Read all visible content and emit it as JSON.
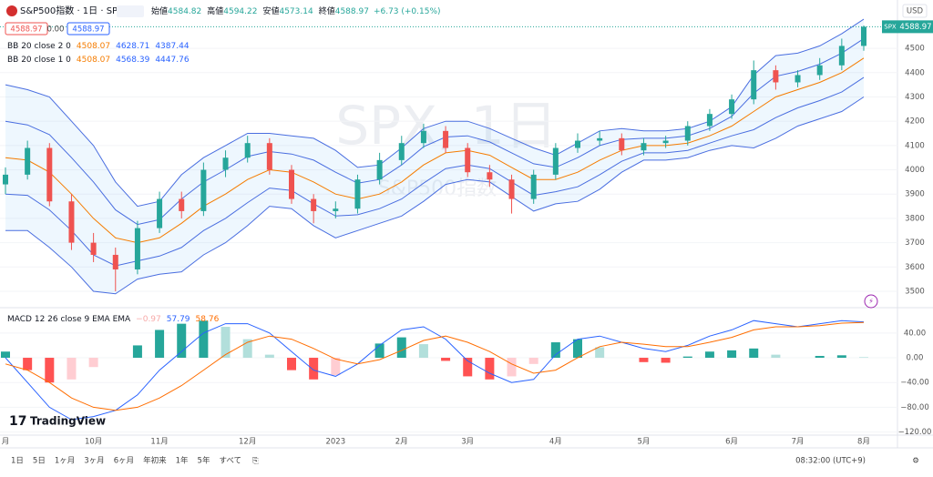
{
  "header": {
    "symbol": "S&P500指数 · 1日 · SP",
    "ohlc": [
      {
        "label": "始値",
        "value": "4584.82"
      },
      {
        "label": "高値",
        "value": "4594.22"
      },
      {
        "label": "安値",
        "value": "4573.14"
      },
      {
        "label": "終値",
        "value": "4588.97"
      }
    ],
    "change": "+6.73 (+0.15%)",
    "boxes": [
      "4588.97",
      "0.00",
      "4588.97"
    ]
  },
  "indicators": {
    "bb2": {
      "label": "BB 20 close 2 0",
      "values": [
        "4508.07",
        "4628.71",
        "4387.44"
      ]
    },
    "bb1": {
      "label": "BB 20 close 1 0",
      "values": [
        "4508.07",
        "4568.39",
        "4447.76"
      ]
    },
    "macd": {
      "label": "MACD 12 26 close 9 EMA EMA",
      "values": [
        "−0.97",
        "57.79",
        "58.76"
      ]
    }
  },
  "watermark": {
    "symbol": "SPX, 1日",
    "name": "S&P500指数"
  },
  "currency": "USD",
  "price_tag": {
    "symbol": "SPX",
    "value": "4588.97"
  },
  "logo": "TradingView",
  "toolbar": {
    "ranges": [
      "1日",
      "5日",
      "1ヶ月",
      "3ヶ月",
      "6ヶ月",
      "年初来",
      "1年",
      "5年",
      "すべて"
    ],
    "time": "08:32:00 (UTC+9)"
  },
  "chart_data": [
    {
      "type": "candlestick",
      "ylim": [
        3440,
        4699
      ],
      "yticks": [
        3500,
        3600,
        3700,
        3800,
        3900,
        4000,
        4100,
        4200,
        4300,
        4400,
        4500
      ],
      "categories": [
        "月",
        null,
        null,
        null,
        "10月",
        null,
        null,
        "11月",
        null,
        null,
        null,
        "12月",
        null,
        null,
        null,
        "2023",
        null,
        null,
        "2月",
        null,
        null,
        "3月",
        null,
        null,
        null,
        "4月",
        null,
        null,
        null,
        "5月",
        null,
        null,
        null,
        "6月",
        null,
        null,
        "7月",
        null,
        null,
        "8月"
      ],
      "up_color": "#26a69a",
      "down_color": "#ef5350",
      "candles": [
        [
          3940,
          4010,
          3900,
          3980
        ],
        [
          3980,
          4120,
          3960,
          4090
        ],
        [
          4090,
          4110,
          3850,
          3870
        ],
        [
          3870,
          3900,
          3670,
          3700
        ],
        [
          3700,
          3740,
          3620,
          3650
        ],
        [
          3650,
          3680,
          3500,
          3590
        ],
        [
          3590,
          3790,
          3570,
          3760
        ],
        [
          3760,
          3910,
          3740,
          3880
        ],
        [
          3880,
          3910,
          3800,
          3830
        ],
        [
          3830,
          4030,
          3810,
          4000
        ],
        [
          4000,
          4080,
          3970,
          4050
        ],
        [
          4050,
          4140,
          4030,
          4110
        ],
        [
          4110,
          4130,
          3980,
          4000
        ],
        [
          4000,
          4020,
          3860,
          3880
        ],
        [
          3880,
          3900,
          3780,
          3830
        ],
        [
          3830,
          3870,
          3800,
          3840
        ],
        [
          3840,
          3980,
          3820,
          3960
        ],
        [
          3960,
          4070,
          3940,
          4040
        ],
        [
          4040,
          4140,
          4020,
          4110
        ],
        [
          4110,
          4190,
          4090,
          4160
        ],
        [
          4160,
          4180,
          4070,
          4090
        ],
        [
          4090,
          4110,
          3970,
          3990
        ],
        [
          3990,
          4020,
          3930,
          3960
        ],
        [
          3960,
          3980,
          3820,
          3880
        ],
        [
          3880,
          4000,
          3860,
          3980
        ],
        [
          3980,
          4110,
          3960,
          4090
        ],
        [
          4090,
          4150,
          4070,
          4120
        ],
        [
          4120,
          4160,
          4100,
          4130
        ],
        [
          4130,
          4150,
          4060,
          4080
        ],
        [
          4080,
          4130,
          4060,
          4110
        ],
        [
          4110,
          4140,
          4090,
          4120
        ],
        [
          4120,
          4200,
          4100,
          4180
        ],
        [
          4180,
          4250,
          4160,
          4230
        ],
        [
          4230,
          4310,
          4210,
          4290
        ],
        [
          4290,
          4450,
          4270,
          4410
        ],
        [
          4410,
          4430,
          4330,
          4360
        ],
        [
          4360,
          4410,
          4340,
          4390
        ],
        [
          4390,
          4460,
          4370,
          4430
        ],
        [
          4430,
          4540,
          4410,
          4510
        ],
        [
          4510,
          4594.22,
          4490,
          4588.97
        ]
      ],
      "band_fill": "#2196f3",
      "band_color": "#4a6ee0",
      "mid_color": "#f57c00",
      "bands": {
        "upper2": [
          4350,
          4330,
          4300,
          4200,
          4100,
          3950,
          3850,
          3870,
          3980,
          4050,
          4100,
          4150,
          4150,
          4140,
          4130,
          4080,
          4010,
          4020,
          4090,
          4170,
          4200,
          4200,
          4170,
          4130,
          4090,
          4060,
          4110,
          4160,
          4170,
          4160,
          4160,
          4170,
          4200,
          4260,
          4390,
          4470,
          4480,
          4510,
          4560,
          4620
        ],
        "upper1": [
          4200,
          4185,
          4145,
          4050,
          3950,
          3835,
          3775,
          3795,
          3880,
          3950,
          4000,
          4055,
          4075,
          4065,
          4040,
          3990,
          3945,
          3960,
          4020,
          4095,
          4135,
          4140,
          4115,
          4070,
          4025,
          4010,
          4050,
          4100,
          4125,
          4130,
          4130,
          4140,
          4170,
          4220,
          4315,
          4385,
          4405,
          4435,
          4480,
          4540
        ],
        "mid": [
          4050,
          4040,
          3990,
          3900,
          3800,
          3720,
          3700,
          3720,
          3780,
          3850,
          3900,
          3960,
          4000,
          3990,
          3950,
          3900,
          3880,
          3900,
          3950,
          4020,
          4070,
          4080,
          4060,
          4010,
          3960,
          3960,
          3990,
          4040,
          4080,
          4100,
          4100,
          4110,
          4140,
          4180,
          4240,
          4300,
          4330,
          4360,
          4400,
          4460
        ],
        "lower1": [
          3900,
          3895,
          3835,
          3750,
          3650,
          3605,
          3625,
          3645,
          3680,
          3750,
          3800,
          3865,
          3925,
          3915,
          3860,
          3810,
          3815,
          3840,
          3880,
          3945,
          4005,
          4020,
          4005,
          3950,
          3895,
          3910,
          3930,
          3980,
          4035,
          4070,
          4070,
          4080,
          4110,
          4140,
          4165,
          4215,
          4255,
          4285,
          4320,
          4380
        ],
        "lower2": [
          3750,
          3750,
          3680,
          3600,
          3500,
          3490,
          3550,
          3570,
          3580,
          3650,
          3700,
          3770,
          3850,
          3840,
          3770,
          3720,
          3750,
          3780,
          3810,
          3870,
          3940,
          3960,
          3950,
          3890,
          3830,
          3860,
          3870,
          3920,
          3990,
          4040,
          4040,
          4050,
          4080,
          4100,
          4090,
          4130,
          4180,
          4210,
          4240,
          4300
        ]
      }
    },
    {
      "type": "macd",
      "ylim": [
        -125,
        78
      ],
      "yticks": [
        {
          "value": 40,
          "label": "40.00"
        },
        {
          "value": 0,
          "label": "0.00"
        },
        {
          "value": -40,
          "label": "−40.00"
        },
        {
          "value": -80,
          "label": "−80.00"
        },
        {
          "value": -120,
          "label": "−120.00"
        }
      ],
      "series": [
        {
          "color": "#2962ff",
          "values": [
            0,
            -40,
            -80,
            -100,
            -95,
            -85,
            -60,
            -20,
            10,
            40,
            55,
            55,
            40,
            10,
            -20,
            -30,
            -10,
            20,
            45,
            50,
            30,
            -5,
            -25,
            -40,
            -35,
            5,
            30,
            35,
            25,
            15,
            10,
            20,
            35,
            45,
            60,
            55,
            50,
            55,
            60,
            58
          ]
        },
        {
          "color": "#ff6d00",
          "values": [
            -10,
            -20,
            -40,
            -65,
            -80,
            -85,
            -80,
            -65,
            -45,
            -20,
            5,
            25,
            35,
            30,
            15,
            -2,
            -10,
            -3,
            12,
            28,
            35,
            25,
            10,
            -10,
            -25,
            -20,
            0,
            18,
            25,
            22,
            18,
            18,
            25,
            33,
            45,
            50,
            50,
            52,
            56,
            57
          ]
        }
      ],
      "histogram": [
        10,
        -20,
        -40,
        -35,
        -15,
        0,
        20,
        45,
        55,
        60,
        50,
        30,
        5,
        -20,
        -35,
        -28,
        0,
        23,
        33,
        22,
        -5,
        -30,
        -35,
        -30,
        -10,
        25,
        30,
        17,
        0,
        -7,
        -8,
        2,
        10,
        12,
        15,
        5,
        0,
        3,
        4,
        1
      ]
    }
  ]
}
